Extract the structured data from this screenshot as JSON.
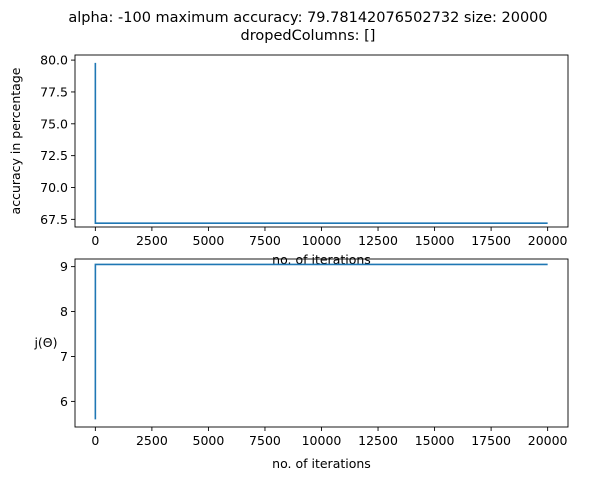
{
  "figure": {
    "title_line1": "alpha: -100 maximum accuracy: 79.78142076502732 size: 20000",
    "title_line2": "dropedColumns: []",
    "series_color": "#1f77b4"
  },
  "chart_data": [
    {
      "type": "line",
      "title": "",
      "xlabel": "no. of iterations",
      "ylabel": "accuracy in percentage",
      "xlim": [
        -900,
        20900
      ],
      "ylim": [
        66.9,
        80.4
      ],
      "xticks": [
        0,
        2500,
        5000,
        7500,
        10000,
        12500,
        15000,
        17500,
        20000
      ],
      "xtick_labels": [
        "0",
        "2500",
        "5000",
        "7500",
        "10000",
        "12500",
        "15000",
        "17500",
        "20000"
      ],
      "yticks": [
        67.5,
        70.0,
        72.5,
        75.0,
        77.5,
        80.0
      ],
      "ytick_labels": [
        "67.5",
        "70.0",
        "72.5",
        "75.0",
        "77.5",
        "80.0"
      ],
      "grid": false,
      "series": [
        {
          "x": [
            0,
            1,
            20000
          ],
          "y": [
            79.78,
            67.2,
            67.2
          ]
        }
      ]
    },
    {
      "type": "line",
      "title": "",
      "xlabel": "no. of iterations",
      "ylabel": "j(Θ)",
      "xlim": [
        -900,
        20900
      ],
      "ylim": [
        5.43,
        9.17
      ],
      "xticks": [
        0,
        2500,
        5000,
        7500,
        10000,
        12500,
        15000,
        17500,
        20000
      ],
      "xtick_labels": [
        "0",
        "2500",
        "5000",
        "7500",
        "10000",
        "12500",
        "15000",
        "17500",
        "20000"
      ],
      "yticks": [
        6,
        7,
        8,
        9
      ],
      "ytick_labels": [
        "6",
        "7",
        "8",
        "9"
      ],
      "grid": false,
      "series": [
        {
          "x": [
            0,
            1,
            20000
          ],
          "y": [
            5.6,
            9.05,
            9.05
          ]
        }
      ]
    }
  ]
}
